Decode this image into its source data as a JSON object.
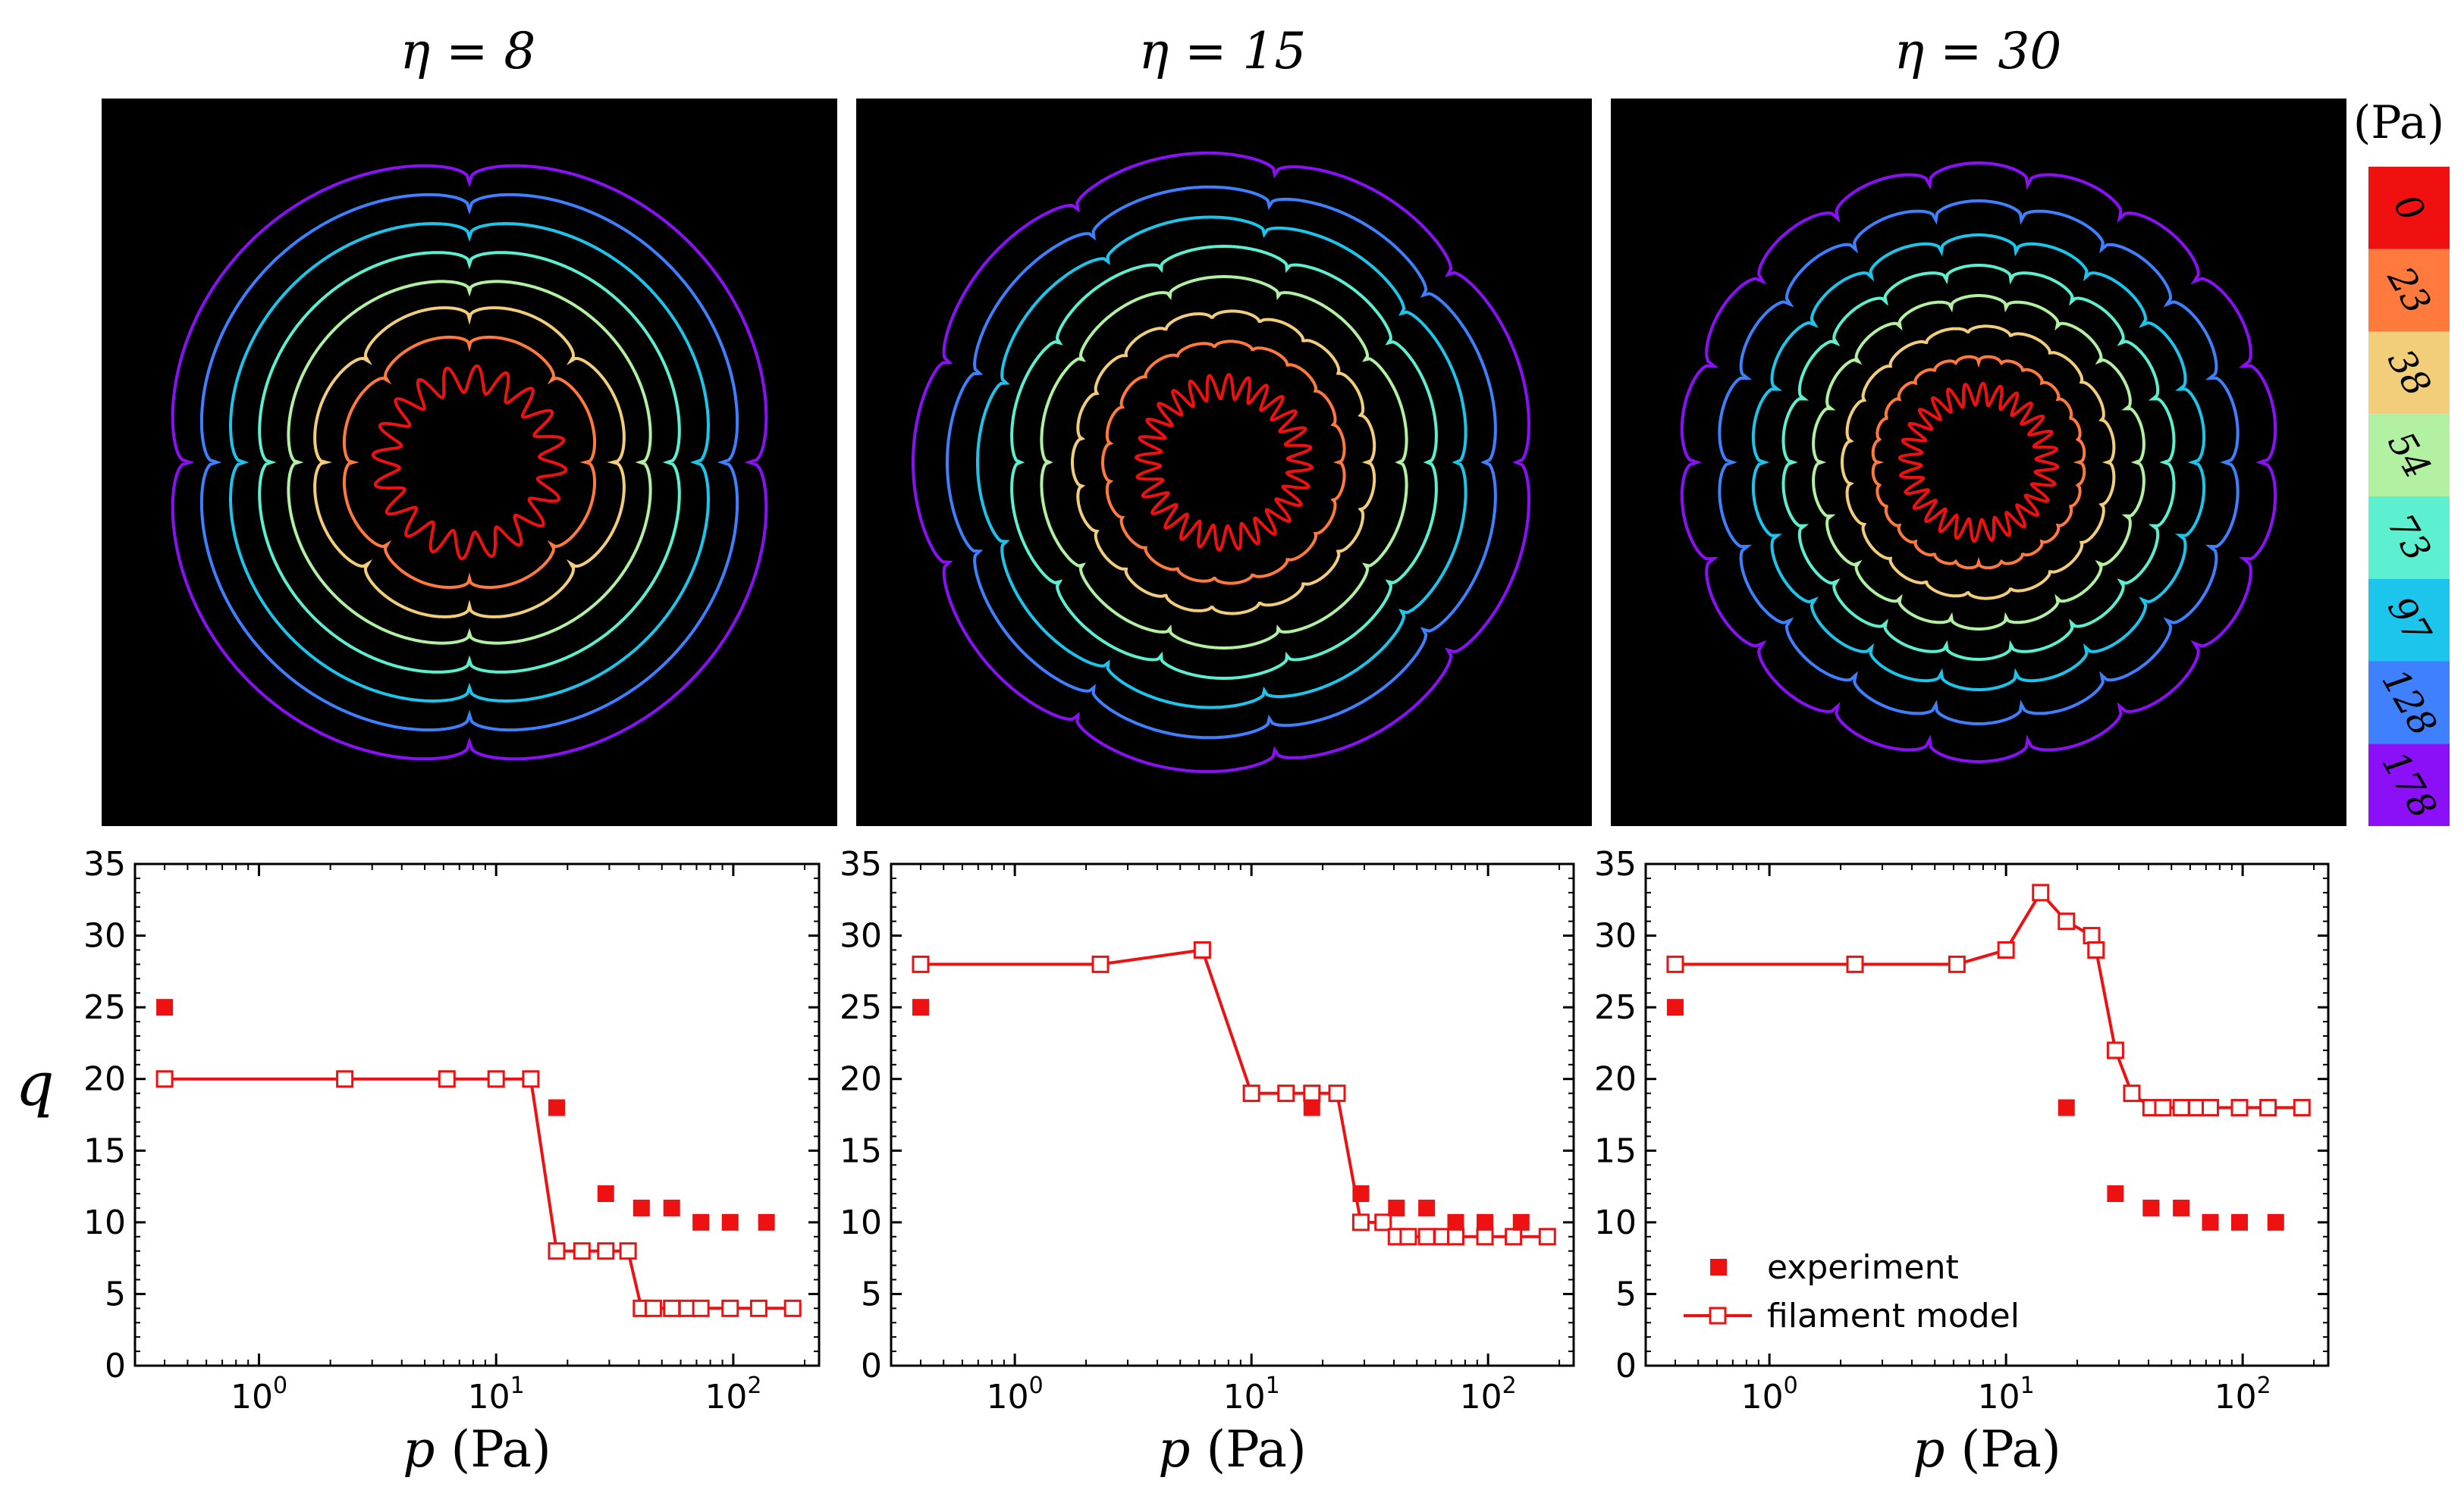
{
  "chart_data": [
    {
      "type": "image-panel",
      "title": "η = 8",
      "eta": 8,
      "modes_shown": [
        20,
        8,
        4
      ]
    },
    {
      "type": "image-panel",
      "title": "η = 15",
      "eta": 15,
      "modes_shown": [
        28,
        19,
        10,
        9
      ]
    },
    {
      "type": "image-panel",
      "title": "η = 30",
      "eta": 30,
      "modes_shown": [
        28,
        19,
        18
      ]
    },
    {
      "type": "colorbar",
      "unit_label": "(Pa)",
      "levels": [
        "0",
        "23",
        "38",
        "54",
        "73",
        "97",
        "128",
        "178"
      ],
      "colors": [
        "#f01010",
        "#ff7a3c",
        "#f2cd7a",
        "#b2f0a2",
        "#5cefd0",
        "#1cc5ec",
        "#3f80ff",
        "#8b10f8"
      ]
    },
    {
      "type": "scatter",
      "xscale": "log",
      "xlim": [
        0.3,
        230
      ],
      "ylim": [
        0,
        35
      ],
      "xlabel": "p (Pa)",
      "ylabel": "q",
      "xticks": [
        "10^0",
        "10^1",
        "10^2"
      ],
      "yticks": [
        "0",
        "5",
        "10",
        "15",
        "20",
        "25",
        "30",
        "35"
      ],
      "series": [
        {
          "name": "experiment",
          "x": [
            0.4,
            18,
            29,
            41,
            55,
            73,
            97,
            138
          ],
          "y": [
            25,
            18,
            12,
            11,
            11,
            10,
            10,
            10
          ]
        },
        {
          "name": "filament model",
          "x": [
            0.4,
            2.3,
            6.2,
            10,
            14,
            18,
            23,
            29,
            36,
            41,
            46,
            55,
            64,
            73,
            97,
            128,
            178
          ],
          "y": [
            20,
            20,
            20,
            20,
            20,
            8,
            8,
            8,
            8,
            4,
            4,
            4,
            4,
            4,
            4,
            4,
            4
          ]
        }
      ]
    },
    {
      "type": "scatter",
      "xscale": "log",
      "xlim": [
        0.3,
        230
      ],
      "ylim": [
        0,
        35
      ],
      "xlabel": "p (Pa)",
      "ylabel": "",
      "xticks": [
        "10^0",
        "10^1",
        "10^2"
      ],
      "yticks": [
        "0",
        "5",
        "10",
        "15",
        "20",
        "25",
        "30",
        "35"
      ],
      "series": [
        {
          "name": "experiment",
          "x": [
            0.4,
            18,
            29,
            41,
            55,
            73,
            97,
            138
          ],
          "y": [
            25,
            18,
            12,
            11,
            11,
            10,
            10,
            10
          ]
        },
        {
          "name": "filament model",
          "x": [
            0.4,
            2.3,
            6.2,
            10,
            14,
            18,
            23,
            29,
            36,
            41,
            46,
            55,
            64,
            73,
            97,
            128,
            178
          ],
          "y": [
            28,
            28,
            29,
            19,
            19,
            19,
            19,
            10,
            10,
            9,
            9,
            9,
            9,
            9,
            9,
            9,
            9
          ]
        }
      ]
    },
    {
      "type": "scatter",
      "xscale": "log",
      "xlim": [
        0.3,
        230
      ],
      "ylim": [
        0,
        35
      ],
      "xlabel": "p (Pa)",
      "ylabel": "",
      "xticks": [
        "10^0",
        "10^1",
        "10^2"
      ],
      "yticks": [
        "0",
        "5",
        "10",
        "15",
        "20",
        "25",
        "30",
        "35"
      ],
      "legend": {
        "placement": "lower-left",
        "entries": [
          "experiment",
          "filament model"
        ]
      },
      "series": [
        {
          "name": "experiment",
          "x": [
            0.4,
            18,
            29,
            41,
            55,
            73,
            97,
            138
          ],
          "y": [
            25,
            18,
            12,
            11,
            11,
            10,
            10,
            10
          ]
        },
        {
          "name": "filament model",
          "x": [
            0.4,
            2.3,
            6.2,
            10,
            14,
            18,
            23,
            24,
            29,
            34,
            41,
            46,
            55,
            64,
            73,
            97,
            128,
            178
          ],
          "y": [
            28,
            28,
            28,
            29,
            33,
            31,
            30,
            29,
            22,
            19,
            18,
            18,
            18,
            18,
            18,
            18,
            18,
            18
          ]
        }
      ]
    }
  ]
}
